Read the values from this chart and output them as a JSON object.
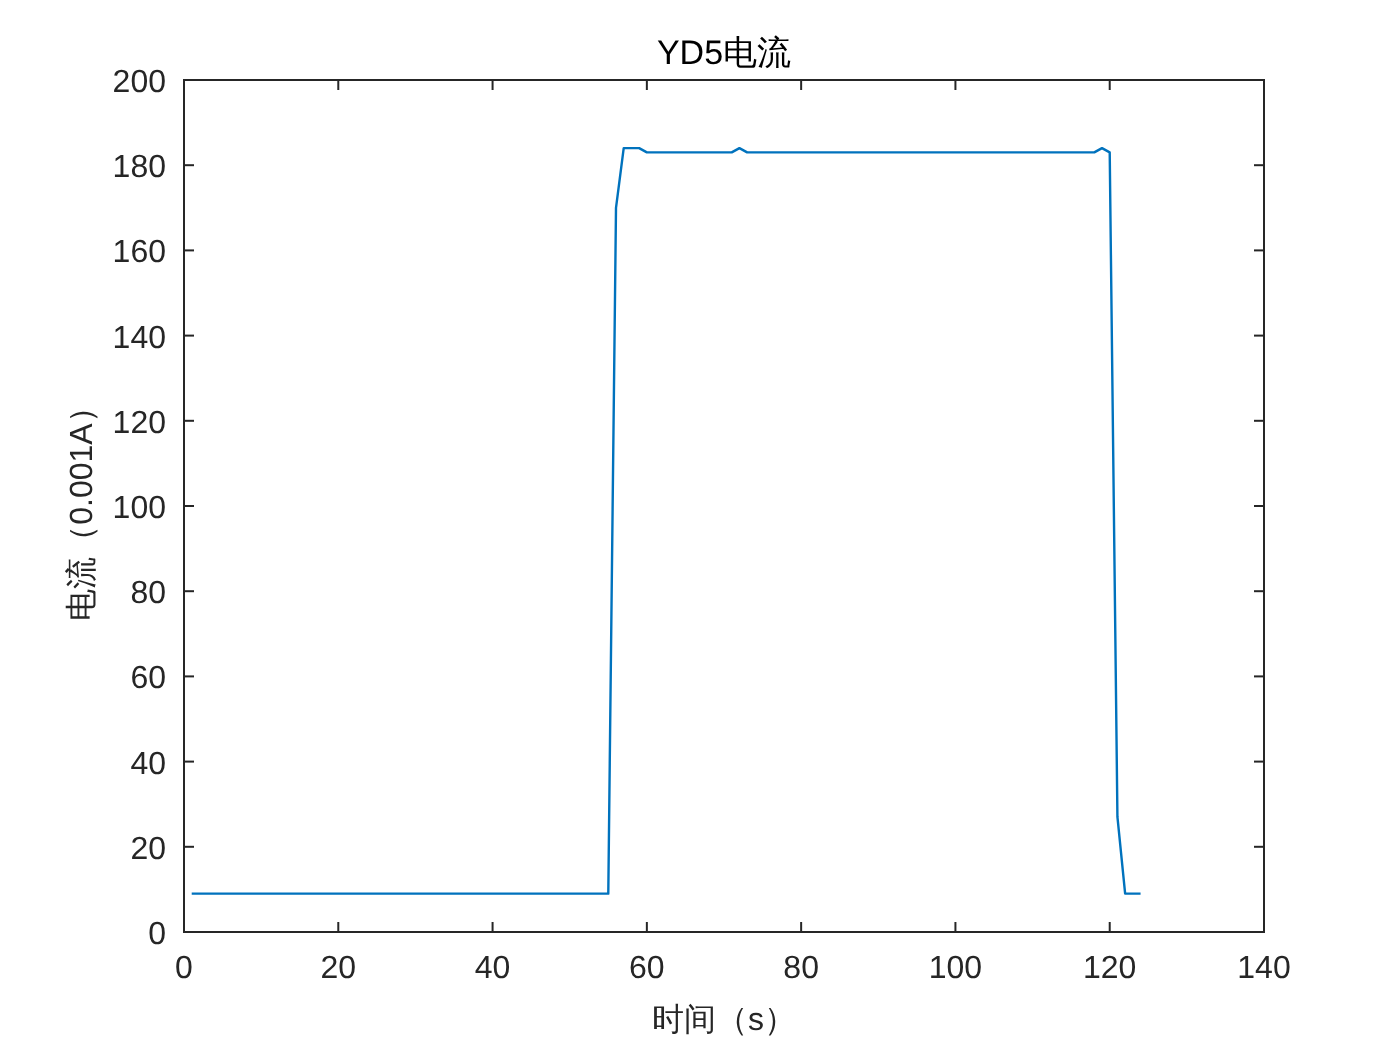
{
  "chart_data": {
    "type": "line",
    "title": "YD5电流",
    "xlabel": "时间（s）",
    "ylabel": "电流（0.001A）",
    "xlim": [
      0,
      140
    ],
    "xticks": [
      0,
      20,
      40,
      60,
      80,
      100,
      120,
      140
    ],
    "ylim": [
      0,
      200
    ],
    "yticks": [
      0,
      20,
      40,
      60,
      80,
      100,
      120,
      140,
      160,
      180,
      200
    ],
    "grid": false,
    "series": [
      {
        "color": "#0072bd",
        "line_style": "solid",
        "marker": "none",
        "x": [
          1,
          55,
          56,
          57,
          59,
          60,
          71,
          72,
          73,
          118,
          119,
          120,
          121,
          122,
          124
        ],
        "values": [
          9,
          9,
          170,
          184,
          184,
          183,
          183,
          184,
          183,
          183,
          184,
          183,
          27,
          9,
          9
        ]
      }
    ]
  }
}
